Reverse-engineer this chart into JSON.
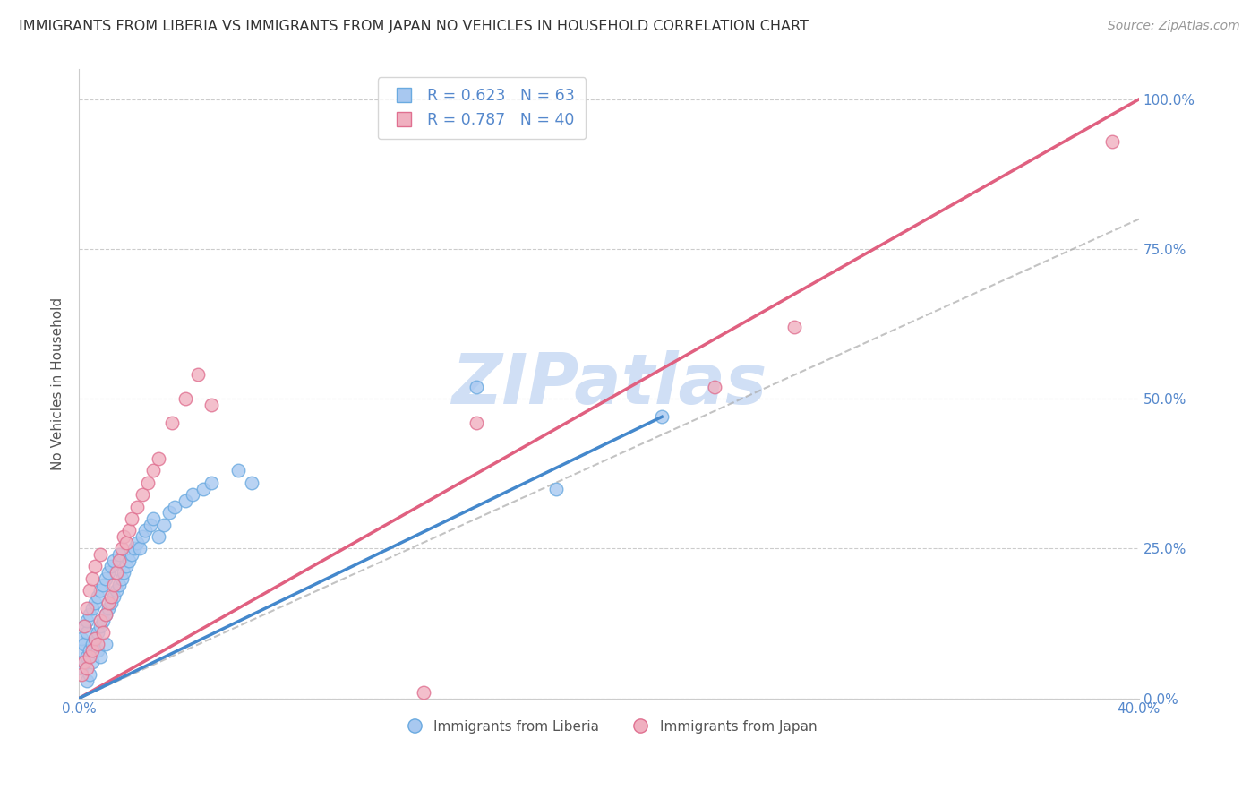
{
  "title": "IMMIGRANTS FROM LIBERIA VS IMMIGRANTS FROM JAPAN NO VEHICLES IN HOUSEHOLD CORRELATION CHART",
  "source": "Source: ZipAtlas.com",
  "ylabel": "No Vehicles in Household",
  "r_liberia": 0.623,
  "n_liberia": 63,
  "r_japan": 0.787,
  "n_japan": 40,
  "color_liberia_fill": "#a8c8f0",
  "color_liberia_edge": "#6aaae0",
  "color_japan_fill": "#f0b0c0",
  "color_japan_edge": "#e07090",
  "color_liberia_line": "#4488cc",
  "color_japan_line": "#e06080",
  "color_dash": "#aaaaaa",
  "color_axis_labels": "#5588cc",
  "color_title": "#333333",
  "color_source": "#999999",
  "watermark": "ZIPatlas",
  "watermark_color": "#d0dff5",
  "xlim": [
    0.0,
    0.4
  ],
  "ylim": [
    0.0,
    1.05
  ],
  "xticks": [
    0.0,
    0.1,
    0.2,
    0.3,
    0.4
  ],
  "yticks": [
    0.0,
    0.25,
    0.5,
    0.75,
    1.0
  ],
  "ytick_labels_right": [
    "0.0%",
    "25.0%",
    "50.0%",
    "75.0%",
    "100.0%"
  ],
  "xtick_labels": [
    "0.0%",
    "",
    "",
    "",
    "40.0%"
  ],
  "liberia_trend": [
    0.0,
    0.0,
    0.22,
    0.47
  ],
  "japan_trend_x": [
    0.0,
    0.4
  ],
  "japan_trend_y": [
    0.0,
    1.0
  ],
  "dash_line_x": [
    0.0,
    0.4
  ],
  "dash_line_y": [
    0.0,
    0.8
  ],
  "liberia_x": [
    0.001,
    0.001,
    0.001,
    0.002,
    0.002,
    0.002,
    0.003,
    0.003,
    0.003,
    0.003,
    0.004,
    0.004,
    0.004,
    0.005,
    0.005,
    0.005,
    0.006,
    0.006,
    0.007,
    0.007,
    0.007,
    0.008,
    0.008,
    0.008,
    0.009,
    0.009,
    0.01,
    0.01,
    0.01,
    0.011,
    0.011,
    0.012,
    0.012,
    0.013,
    0.013,
    0.014,
    0.015,
    0.015,
    0.016,
    0.017,
    0.018,
    0.019,
    0.02,
    0.021,
    0.022,
    0.023,
    0.024,
    0.025,
    0.027,
    0.028,
    0.03,
    0.032,
    0.034,
    0.036,
    0.04,
    0.043,
    0.047,
    0.05,
    0.06,
    0.065,
    0.15,
    0.18,
    0.22
  ],
  "liberia_y": [
    0.05,
    0.08,
    0.1,
    0.06,
    0.09,
    0.12,
    0.07,
    0.11,
    0.13,
    0.03,
    0.08,
    0.14,
    0.04,
    0.09,
    0.15,
    0.06,
    0.1,
    0.16,
    0.11,
    0.17,
    0.08,
    0.12,
    0.18,
    0.07,
    0.13,
    0.19,
    0.14,
    0.2,
    0.09,
    0.15,
    0.21,
    0.16,
    0.22,
    0.17,
    0.23,
    0.18,
    0.19,
    0.24,
    0.2,
    0.21,
    0.22,
    0.23,
    0.24,
    0.25,
    0.26,
    0.25,
    0.27,
    0.28,
    0.29,
    0.3,
    0.27,
    0.29,
    0.31,
    0.32,
    0.33,
    0.34,
    0.35,
    0.36,
    0.38,
    0.36,
    0.52,
    0.35,
    0.47
  ],
  "japan_x": [
    0.001,
    0.002,
    0.002,
    0.003,
    0.003,
    0.004,
    0.004,
    0.005,
    0.005,
    0.006,
    0.006,
    0.007,
    0.008,
    0.008,
    0.009,
    0.01,
    0.011,
    0.012,
    0.013,
    0.014,
    0.015,
    0.016,
    0.017,
    0.018,
    0.019,
    0.02,
    0.022,
    0.024,
    0.026,
    0.028,
    0.03,
    0.035,
    0.04,
    0.045,
    0.05,
    0.13,
    0.15,
    0.24,
    0.27,
    0.39
  ],
  "japan_y": [
    0.04,
    0.06,
    0.12,
    0.05,
    0.15,
    0.07,
    0.18,
    0.08,
    0.2,
    0.1,
    0.22,
    0.09,
    0.13,
    0.24,
    0.11,
    0.14,
    0.16,
    0.17,
    0.19,
    0.21,
    0.23,
    0.25,
    0.27,
    0.26,
    0.28,
    0.3,
    0.32,
    0.34,
    0.36,
    0.38,
    0.4,
    0.46,
    0.5,
    0.54,
    0.49,
    0.01,
    0.46,
    0.52,
    0.62,
    0.93
  ]
}
